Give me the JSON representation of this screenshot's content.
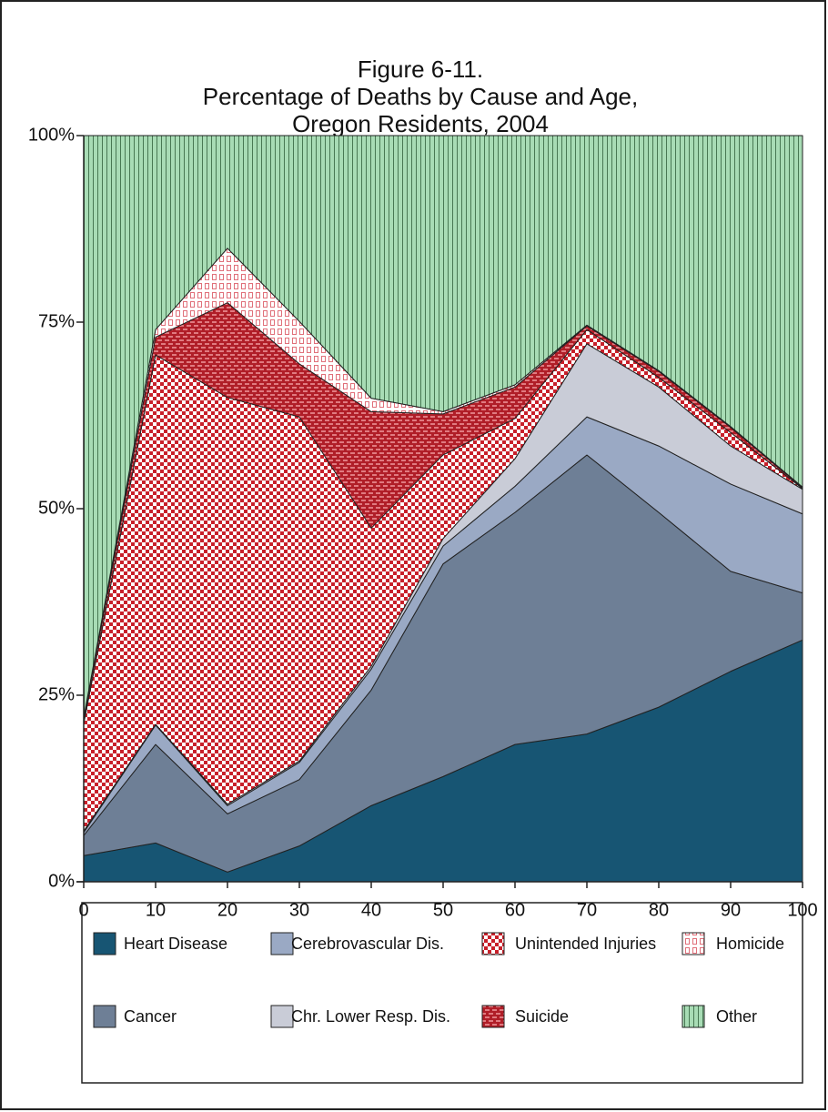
{
  "chart_data": {
    "type": "stacked-area",
    "title": [
      "Figure 6-11.",
      "Percentage of Deaths by Cause and Age,",
      "Oregon Residents, 2004"
    ],
    "x": [
      0,
      10,
      20,
      30,
      40,
      50,
      60,
      70,
      80,
      90,
      100
    ],
    "xlim": [
      0,
      100
    ],
    "xticks": [
      0,
      10,
      20,
      30,
      40,
      50,
      60,
      70,
      80,
      90,
      100
    ],
    "ylim": [
      0,
      100
    ],
    "yticks": [
      {
        "value": 0,
        "label": "0%"
      },
      {
        "value": 25,
        "label": "25%"
      },
      {
        "value": 50,
        "label": "50%"
      },
      {
        "value": 75,
        "label": "75%"
      },
      {
        "value": 100,
        "label": "100%"
      }
    ],
    "series": [
      {
        "name": "Heart Disease",
        "color": "#175573",
        "pattern": "solid",
        "values": [
          3.5,
          5.2,
          1.3,
          4.8,
          10.2,
          14.1,
          18.4,
          19.8,
          23.4,
          28.2,
          32.4
        ]
      },
      {
        "name": "Cancer",
        "color": "#6e7f96",
        "pattern": "solid",
        "values": [
          2.7,
          13.2,
          7.8,
          8.9,
          15.5,
          28.5,
          31.1,
          37.4,
          26.1,
          13.4,
          6.3
        ]
      },
      {
        "name": "Cerebrovascular Dis.",
        "color": "#9aa9c4",
        "pattern": "solid",
        "values": [
          0.4,
          2.6,
          1.1,
          2.3,
          2.8,
          2.4,
          3.5,
          5.1,
          8.9,
          11.7,
          10.6
        ]
      },
      {
        "name": "Chr. Lower Resp. Dis.",
        "color": "#c9ccd7",
        "pattern": "solid",
        "values": [
          0.2,
          0.1,
          0.2,
          0.2,
          0.4,
          1.0,
          3.7,
          9.8,
          7.9,
          5.1,
          3.3
        ]
      },
      {
        "name": "Unintended Injuries",
        "color": "#c8202a",
        "pattern": "checker",
        "values": [
          14.4,
          49.5,
          54.5,
          46.1,
          18.5,
          11.2,
          5.4,
          1.9,
          1.3,
          1.8,
          0.1
        ]
      },
      {
        "name": "Suicide",
        "color": "#b01e28",
        "pattern": "brick",
        "values": [
          0.6,
          2.4,
          12.7,
          7.1,
          15.6,
          5.5,
          4.2,
          0.5,
          0.8,
          0.7,
          0.1
        ]
      },
      {
        "name": "Homicide",
        "color": "#e0707a",
        "pattern": "outline-brick",
        "values": [
          0.2,
          1.0,
          7.3,
          5.7,
          1.8,
          0.3,
          0.3,
          0.1,
          0.1,
          0.1,
          0.1
        ]
      },
      {
        "name": "Other",
        "color": "#a8dcb5",
        "pattern": "vlines",
        "values": [
          78.0,
          26.0,
          15.1,
          24.9,
          35.2,
          37.0,
          33.4,
          25.4,
          31.5,
          39.0,
          47.1
        ]
      }
    ]
  }
}
